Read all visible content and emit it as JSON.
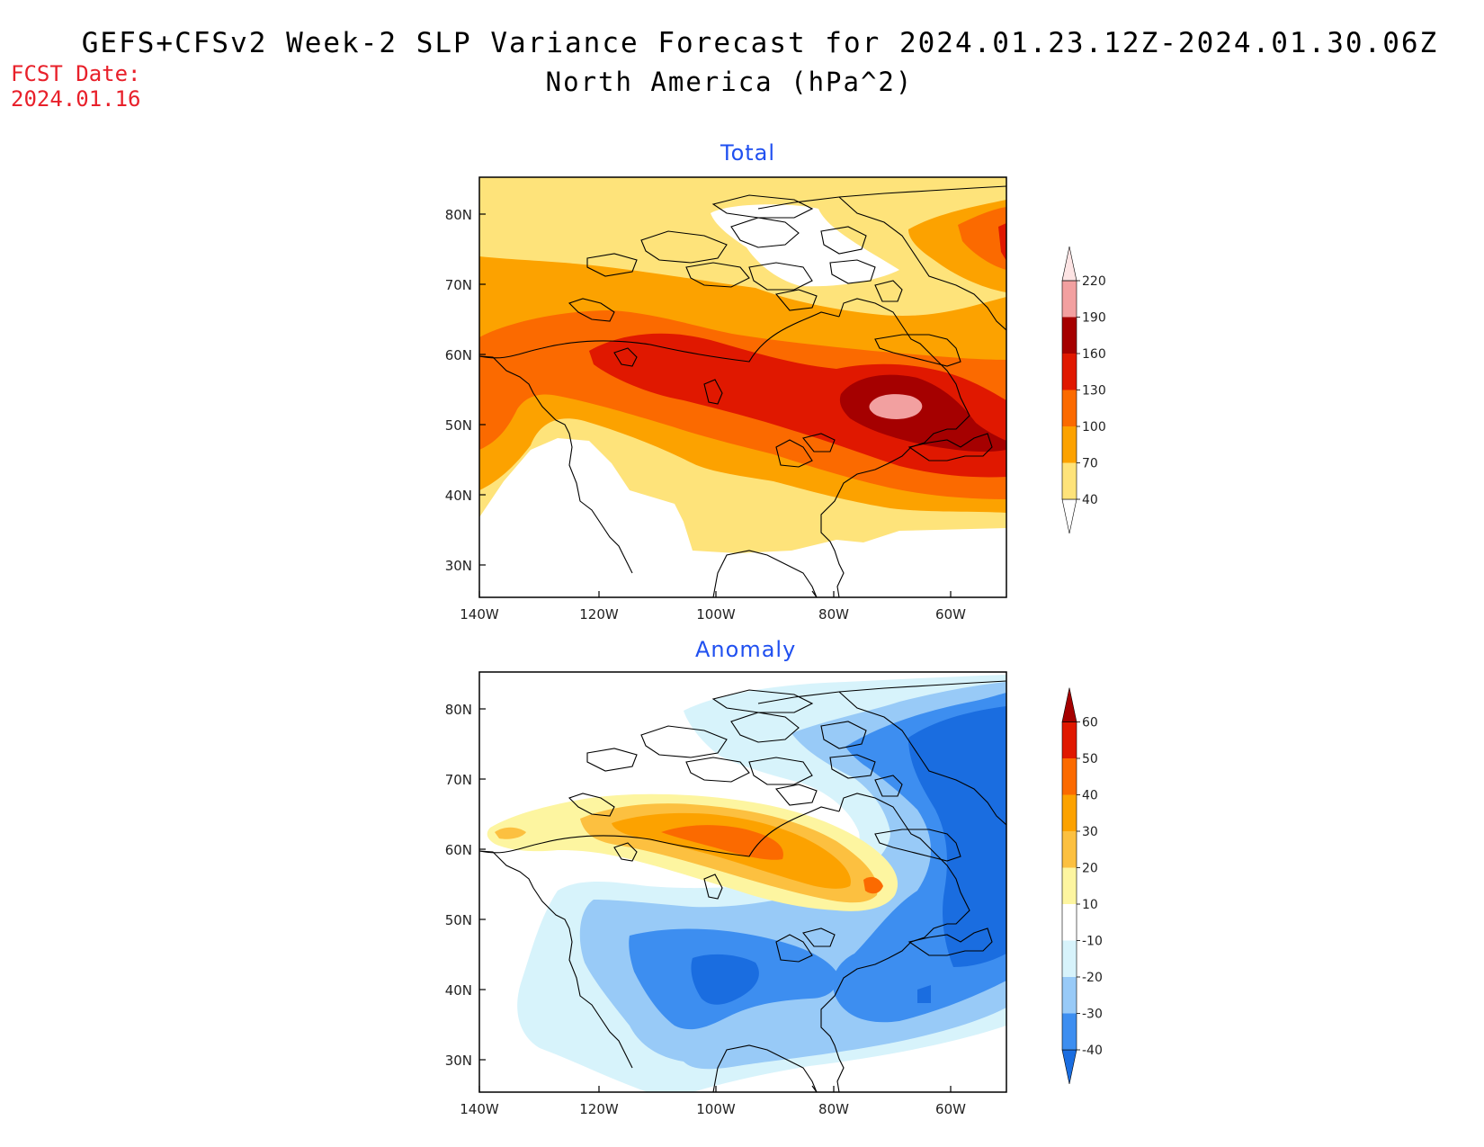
{
  "header": {
    "title_line1": "GEFS+CFSv2 Week-2 SLP Variance Forecast for 2024.01.23.12Z-2024.01.30.06Z",
    "title_line2": "North America (hPa^2)",
    "fcst_label": "FCST Date:",
    "fcst_date": "2024.01.16"
  },
  "panels": [
    {
      "title": "Total",
      "lat_ticks": [
        "80N",
        "70N",
        "60N",
        "50N",
        "40N",
        "30N"
      ],
      "lon_ticks": [
        "140W",
        "120W",
        "100W",
        "80W",
        "60W"
      ],
      "colorbar": {
        "levels": [
          "40",
          "70",
          "100",
          "130",
          "160",
          "190",
          "220"
        ],
        "colors": [
          "#ffffff",
          "#fee37a",
          "#fca200",
          "#fb6a00",
          "#e01800",
          "#a50000",
          "#f2a0a0",
          "#fde4e4"
        ]
      }
    },
    {
      "title": "Anomaly",
      "lat_ticks": [
        "80N",
        "70N",
        "60N",
        "50N",
        "40N",
        "30N"
      ],
      "lon_ticks": [
        "140W",
        "120W",
        "100W",
        "80W",
        "60W"
      ],
      "colorbar": {
        "levels": [
          "-40",
          "-30",
          "-20",
          "-10",
          "10",
          "20",
          "30",
          "40",
          "50",
          "60"
        ],
        "colors": [
          "#1a6de0",
          "#3d8ef0",
          "#98caf7",
          "#d7f3fb",
          "#ffffff",
          "#fdf5a0",
          "#fcc040",
          "#fca200",
          "#fb6a00",
          "#e01800",
          "#a50000"
        ]
      }
    }
  ],
  "icons": [
    "coastline-map"
  ]
}
